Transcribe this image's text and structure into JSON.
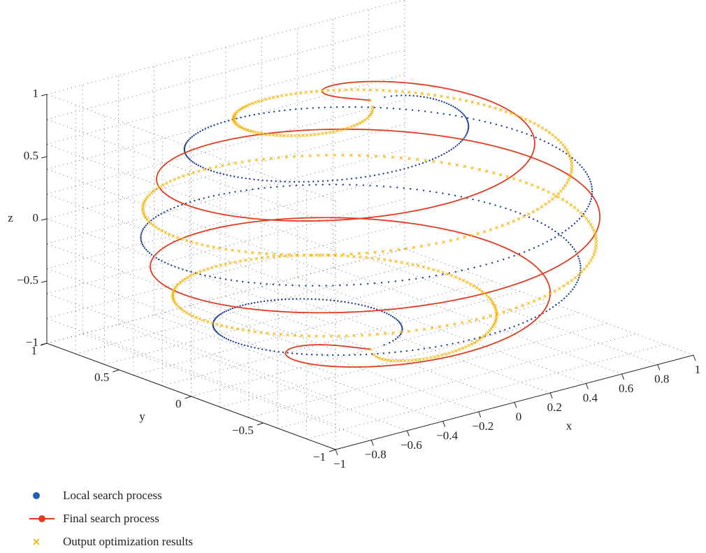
{
  "chart_data": {
    "type": "line",
    "subtype": "3d-helix",
    "xlabel": "x",
    "ylabel": "y",
    "zlabel": "z",
    "xlim": [
      -1,
      1
    ],
    "ylim": [
      -1,
      1
    ],
    "zlim": [
      -1,
      1
    ],
    "x_ticks": [
      "-1",
      "-0.8",
      "-0.6",
      "-0.4",
      "-0.2",
      "0",
      "0.2",
      "0.4",
      "0.6",
      "0.8",
      "1"
    ],
    "y_ticks": [
      "-1",
      "-0.5",
      "0",
      "0.5",
      "1"
    ],
    "z_ticks": [
      "-1",
      "-0.5",
      "0",
      "0.5",
      "1"
    ],
    "grid": true,
    "legend_position": "bottom-left",
    "series": [
      {
        "name": "Local search process",
        "marker": "dot",
        "color": "#1f3f8f",
        "shape": "sphere spiral",
        "turns": 3,
        "phase_deg": 0,
        "radius_scale": 1.0,
        "z_range": [
          -1,
          1
        ]
      },
      {
        "name": "Final search process",
        "marker": "line-dot",
        "color": "#e03c1f",
        "shape": "sphere spiral",
        "turns": 3,
        "phase_deg": 120,
        "radius_scale": 1.0,
        "z_range": [
          -1,
          1
        ]
      },
      {
        "name": "Output optimization results",
        "marker": "x",
        "color": "#f5b400",
        "shape": "sphere spiral",
        "turns": 3,
        "phase_deg": 240,
        "radius_scale": 1.0,
        "z_range": [
          -1,
          1
        ]
      }
    ]
  }
}
